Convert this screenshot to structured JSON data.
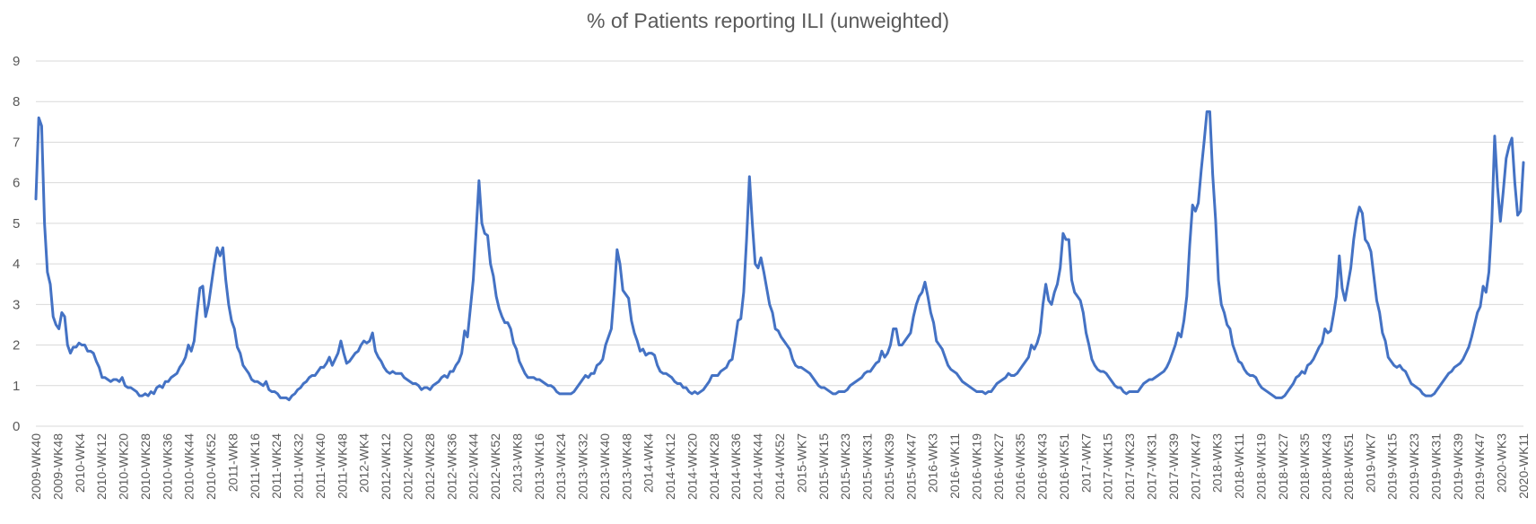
{
  "chart_data": {
    "type": "line",
    "title": "% of Patients reporting ILI (unweighted)",
    "xlabel": "",
    "ylabel": "",
    "ylim": [
      0,
      9
    ],
    "yticks": [
      0,
      1,
      2,
      3,
      4,
      5,
      6,
      7,
      8,
      9
    ],
    "grid": true,
    "legend": "none",
    "line_color": "#4472C4",
    "x_tick_labels": [
      "2009-WK40",
      "2009-WK48",
      "2010-WK4",
      "2010-WK12",
      "2010-WK20",
      "2010-WK28",
      "2010-WK36",
      "2010-WK44",
      "2010-WK52",
      "2011-WK8",
      "2011-WK16",
      "2011-WK24",
      "2011-WK32",
      "2011-WK40",
      "2011-WK48",
      "2012-WK4",
      "2012-WK12",
      "2012-WK20",
      "2012-WK28",
      "2012-WK36",
      "2012-WK44",
      "2012-WK52",
      "2013-WK8",
      "2013-WK16",
      "2013-WK24",
      "2013-WK32",
      "2013-WK40",
      "2013-WK48",
      "2014-WK4",
      "2014-WK12",
      "2014-WK20",
      "2014-WK28",
      "2014-WK36",
      "2014-WK44",
      "2014-WK52",
      "2015-WK7",
      "2015-WK15",
      "2015-WK23",
      "2015-WK31",
      "2015-WK39",
      "2015-WK47",
      "2016-WK3",
      "2016-WK11",
      "2016-WK19",
      "2016-WK27",
      "2016-WK35",
      "2016-WK43",
      "2016-WK51",
      "2017-WK7",
      "2017-WK15",
      "2017-WK23",
      "2017-WK31",
      "2017-WK39",
      "2017-WK47",
      "2018-WK3",
      "2018-WK11",
      "2018-WK19",
      "2018-WK27",
      "2018-WK35",
      "2018-WK43",
      "2018-WK51",
      "2019-WK7",
      "2019-WK15",
      "2019-WK23",
      "2019-WK31",
      "2019-WK39",
      "2019-WK47",
      "2020-WK3",
      "2020-WK11"
    ],
    "series": [
      {
        "values": [
          5.6,
          7.6,
          7.4,
          5.0,
          3.8,
          3.5,
          2.7,
          2.5,
          2.4,
          2.8,
          2.7,
          2.0,
          1.8,
          1.95,
          1.95,
          2.05,
          2.0,
          2.0,
          1.85,
          1.85,
          1.8,
          1.6,
          1.45,
          1.2,
          1.2,
          1.15,
          1.1,
          1.15,
          1.15,
          1.1,
          1.2,
          1.0,
          0.95,
          0.95,
          0.9,
          0.85,
          0.75,
          0.75,
          0.8,
          0.75,
          0.85,
          0.8,
          0.95,
          1.0,
          0.95,
          1.1,
          1.1,
          1.2,
          1.25,
          1.3,
          1.45,
          1.55,
          1.7,
          2.0,
          1.85,
          2.1,
          2.8,
          3.4,
          3.45,
          2.7,
          3.0,
          3.5,
          4.0,
          4.4,
          4.2,
          4.4,
          3.6,
          3.0,
          2.6,
          2.4,
          1.95,
          1.8,
          1.5,
          1.4,
          1.3,
          1.15,
          1.1,
          1.1,
          1.05,
          1.0,
          1.1,
          0.9,
          0.85,
          0.85,
          0.8,
          0.7,
          0.7,
          0.7,
          0.65,
          0.75,
          0.8,
          0.9,
          0.95,
          1.05,
          1.1,
          1.2,
          1.25,
          1.25,
          1.35,
          1.45,
          1.45,
          1.55,
          1.7,
          1.5,
          1.65,
          1.8,
          2.1,
          1.8,
          1.55,
          1.6,
          1.7,
          1.8,
          1.85,
          2.0,
          2.1,
          2.05,
          2.1,
          2.3,
          1.85,
          1.7,
          1.6,
          1.45,
          1.35,
          1.3,
          1.35,
          1.3,
          1.3,
          1.3,
          1.2,
          1.15,
          1.1,
          1.05,
          1.05,
          1.0,
          0.9,
          0.95,
          0.95,
          0.9,
          1.0,
          1.05,
          1.1,
          1.2,
          1.25,
          1.2,
          1.35,
          1.35,
          1.5,
          1.6,
          1.8,
          2.35,
          2.2,
          2.9,
          3.6,
          4.8,
          6.05,
          5.0,
          4.75,
          4.7,
          4.0,
          3.7,
          3.2,
          2.9,
          2.7,
          2.55,
          2.55,
          2.4,
          2.05,
          1.9,
          1.6,
          1.45,
          1.3,
          1.2,
          1.2,
          1.2,
          1.15,
          1.15,
          1.1,
          1.05,
          1.0,
          1.0,
          0.95,
          0.85,
          0.8,
          0.8,
          0.8,
          0.8,
          0.8,
          0.85,
          0.95,
          1.05,
          1.15,
          1.25,
          1.2,
          1.3,
          1.3,
          1.5,
          1.55,
          1.65,
          2.0,
          2.2,
          2.4,
          3.3,
          4.35,
          4.0,
          3.35,
          3.25,
          3.15,
          2.6,
          2.3,
          2.1,
          1.85,
          1.9,
          1.75,
          1.8,
          1.8,
          1.75,
          1.5,
          1.35,
          1.3,
          1.3,
          1.25,
          1.2,
          1.1,
          1.05,
          1.05,
          0.95,
          0.95,
          0.85,
          0.8,
          0.85,
          0.8,
          0.85,
          0.9,
          1.0,
          1.1,
          1.25,
          1.25,
          1.25,
          1.35,
          1.4,
          1.45,
          1.6,
          1.65,
          2.1,
          2.6,
          2.65,
          3.3,
          4.6,
          6.15,
          5.0,
          4.0,
          3.9,
          4.15,
          3.8,
          3.4,
          3.0,
          2.8,
          2.4,
          2.35,
          2.2,
          2.1,
          2.0,
          1.9,
          1.65,
          1.5,
          1.45,
          1.45,
          1.4,
          1.35,
          1.3,
          1.2,
          1.1,
          1.0,
          0.95,
          0.95,
          0.9,
          0.85,
          0.8,
          0.8,
          0.85,
          0.85,
          0.85,
          0.9,
          1.0,
          1.05,
          1.1,
          1.15,
          1.2,
          1.3,
          1.35,
          1.35,
          1.45,
          1.55,
          1.6,
          1.85,
          1.7,
          1.8,
          2.0,
          2.4,
          2.4,
          2.0,
          2.0,
          2.1,
          2.2,
          2.3,
          2.7,
          3.0,
          3.2,
          3.3,
          3.55,
          3.2,
          2.8,
          2.55,
          2.1,
          2.0,
          1.9,
          1.7,
          1.5,
          1.4,
          1.35,
          1.3,
          1.2,
          1.1,
          1.05,
          1.0,
          0.95,
          0.9,
          0.85,
          0.85,
          0.85,
          0.8,
          0.85,
          0.85,
          0.95,
          1.05,
          1.1,
          1.15,
          1.2,
          1.3,
          1.25,
          1.25,
          1.3,
          1.4,
          1.5,
          1.6,
          1.7,
          2.0,
          1.9,
          2.05,
          2.3,
          3.0,
          3.5,
          3.1,
          3.0,
          3.3,
          3.5,
          3.9,
          4.75,
          4.6,
          4.6,
          3.6,
          3.3,
          3.2,
          3.1,
          2.8,
          2.3,
          2.0,
          1.65,
          1.5,
          1.4,
          1.35,
          1.35,
          1.3,
          1.2,
          1.1,
          1.0,
          0.95,
          0.95,
          0.85,
          0.8,
          0.85,
          0.85,
          0.85,
          0.85,
          0.95,
          1.05,
          1.1,
          1.15,
          1.15,
          1.2,
          1.25,
          1.3,
          1.35,
          1.45,
          1.6,
          1.8,
          2.0,
          2.3,
          2.2,
          2.6,
          3.2,
          4.45,
          5.45,
          5.3,
          5.5,
          6.3,
          7.0,
          7.75,
          7.75,
          6.2,
          5.1,
          3.6,
          3.0,
          2.8,
          2.5,
          2.4,
          2.0,
          1.8,
          1.6,
          1.55,
          1.4,
          1.3,
          1.25,
          1.25,
          1.2,
          1.05,
          0.95,
          0.9,
          0.85,
          0.8,
          0.75,
          0.7,
          0.7,
          0.7,
          0.75,
          0.85,
          0.95,
          1.05,
          1.2,
          1.25,
          1.35,
          1.3,
          1.5,
          1.55,
          1.65,
          1.8,
          1.95,
          2.05,
          2.4,
          2.3,
          2.35,
          2.75,
          3.2,
          4.2,
          3.4,
          3.1,
          3.5,
          3.9,
          4.6,
          5.1,
          5.4,
          5.25,
          4.6,
          4.5,
          4.3,
          3.7,
          3.1,
          2.8,
          2.3,
          2.1,
          1.7,
          1.6,
          1.5,
          1.45,
          1.5,
          1.4,
          1.35,
          1.2,
          1.05,
          1.0,
          0.95,
          0.9,
          0.8,
          0.75,
          0.75,
          0.75,
          0.8,
          0.9,
          1.0,
          1.1,
          1.2,
          1.3,
          1.35,
          1.45,
          1.5,
          1.55,
          1.65,
          1.8,
          1.95,
          2.2,
          2.5,
          2.8,
          2.95,
          3.45,
          3.3,
          3.8,
          5.0,
          7.15,
          5.9,
          5.05,
          5.8,
          6.6,
          6.9,
          7.1,
          6.0,
          5.2,
          5.3,
          6.5
        ]
      }
    ]
  }
}
